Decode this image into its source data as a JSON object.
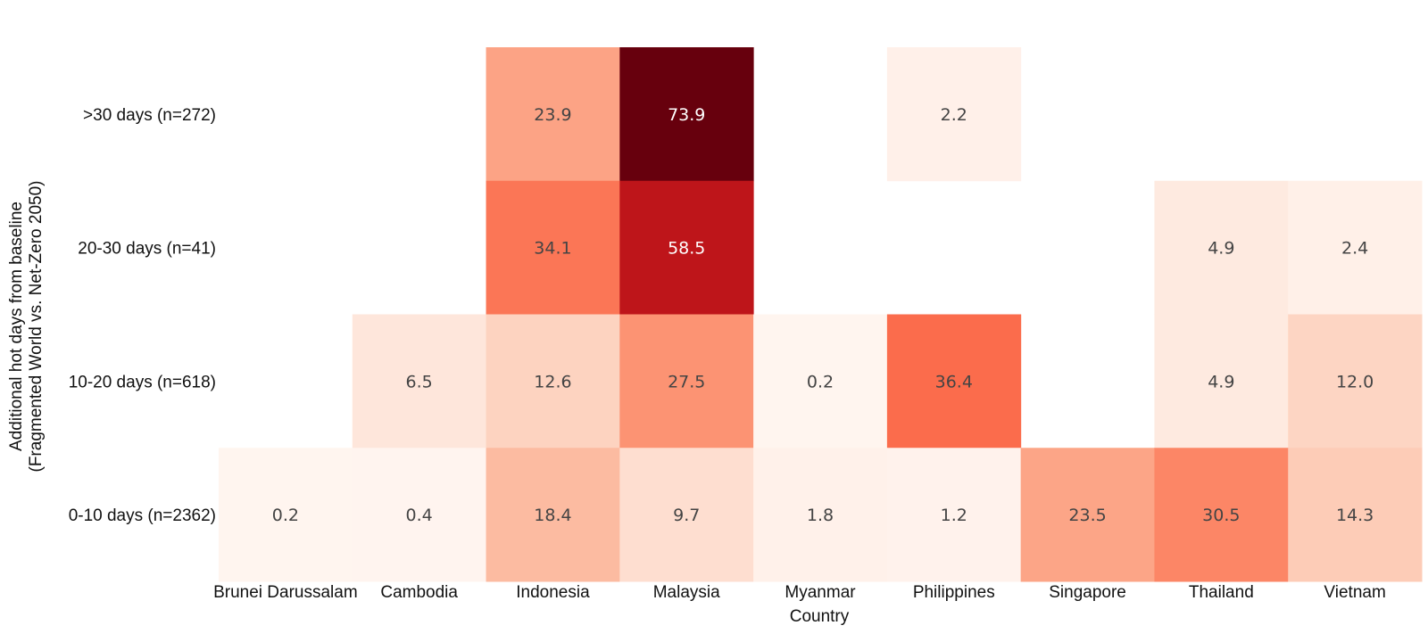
{
  "chart_data": {
    "type": "heatmap",
    "xlabel": "Country",
    "ylabel_lines": [
      "Additional hot days from baseline",
      "(Fragmented World vs. Net-Zero 2050)"
    ],
    "x_categories": [
      "Brunei Darussalam",
      "Cambodia",
      "Indonesia",
      "Malaysia",
      "Myanmar",
      "Philippines",
      "Singapore",
      "Thailand",
      "Vietnam"
    ],
    "y_categories": [
      ">30 days (n=272)",
      "20-30 days (n=41)",
      "10-20 days (n=618)",
      "0-10 days (n=2362)"
    ],
    "values": [
      [
        null,
        null,
        23.9,
        73.9,
        null,
        2.2,
        null,
        null,
        null
      ],
      [
        null,
        null,
        34.1,
        58.5,
        null,
        null,
        null,
        4.9,
        2.4
      ],
      [
        null,
        6.5,
        12.6,
        27.5,
        0.2,
        36.4,
        null,
        4.9,
        12.0
      ],
      [
        0.2,
        0.4,
        18.4,
        9.7,
        1.8,
        1.2,
        23.5,
        30.5,
        14.3
      ]
    ],
    "colorscale": "Reds",
    "zmin": 0,
    "zmax": 73.9,
    "grid": false,
    "legend": "none"
  }
}
